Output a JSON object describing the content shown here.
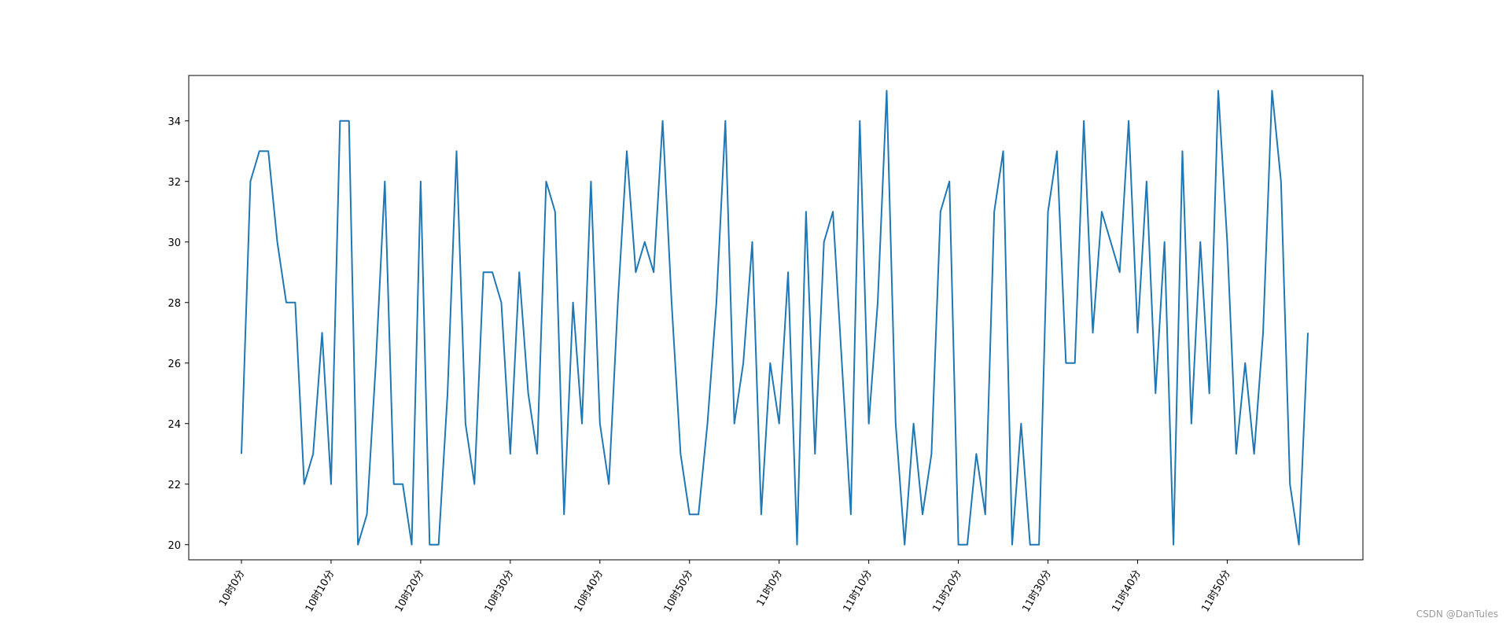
{
  "chart_data": {
    "type": "line",
    "title": "",
    "xlabel": "",
    "ylabel": "",
    "x_tick_labels": [
      "10时0分",
      "10时10分",
      "10时20分",
      "10时30分",
      "10时40分",
      "10时50分",
      "11时0分",
      "11时10分",
      "11时20分",
      "11时30分",
      "11时40分",
      "11时50分"
    ],
    "x_tick_step": 10,
    "y_ticks": [
      20,
      22,
      24,
      26,
      28,
      30,
      32,
      34
    ],
    "ylim": [
      19.5,
      35.5
    ],
    "grid": false,
    "legend": "none",
    "series": [
      {
        "color": "#1f77b4",
        "values": [
          23,
          32,
          33,
          33,
          30,
          28,
          28,
          22,
          23,
          27,
          22,
          34,
          34,
          20,
          21,
          26,
          32,
          22,
          22,
          20,
          32,
          20,
          20,
          25,
          33,
          24,
          22,
          29,
          29,
          28,
          23,
          29,
          25,
          23,
          32,
          31,
          21,
          28,
          24,
          32,
          24,
          22,
          28,
          33,
          29,
          30,
          29,
          34,
          28,
          23,
          21,
          21,
          24,
          28,
          34,
          24,
          26,
          30,
          21,
          26,
          24,
          29,
          20,
          31,
          23,
          30,
          31,
          26,
          21,
          34,
          24,
          28,
          35,
          24,
          20,
          24,
          21,
          23,
          31,
          32,
          20,
          20,
          23,
          21,
          31,
          33,
          20,
          24,
          20,
          20,
          31,
          33,
          26,
          26,
          34,
          27,
          31,
          30,
          29,
          34,
          27,
          32,
          25,
          30,
          20,
          33,
          24,
          30,
          25,
          35,
          30,
          23,
          26,
          23,
          27,
          35,
          32,
          22,
          20,
          27
        ]
      }
    ]
  },
  "watermark": "CSDN @DanTules"
}
